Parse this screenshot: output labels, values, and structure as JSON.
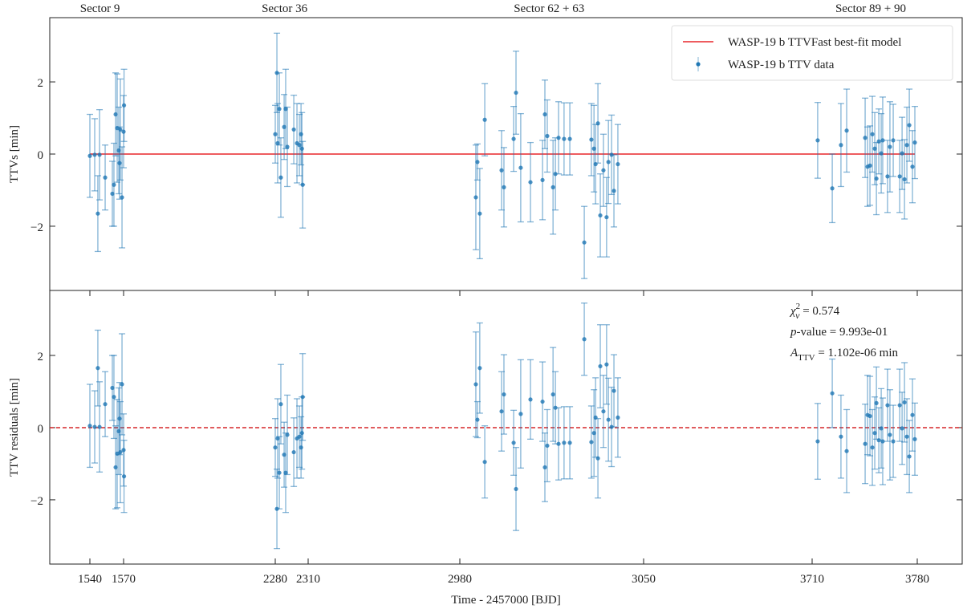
{
  "chart_data": [
    {
      "type": "errorbar",
      "ylabel": "TTVs [min]",
      "ylim": [
        -3.78,
        3.78
      ],
      "yticks": [
        {
          "value": -2,
          "label": "−2"
        },
        0,
        2
      ],
      "x2ticks": [
        {
          "value": 1549,
          "label": "Sector 9"
        },
        {
          "value": 2288.5,
          "label": "Sector 36"
        },
        {
          "value": 3014,
          "label": "Sector 62 + 63"
        },
        {
          "value": 3749,
          "label": "Sector 89 + 90"
        }
      ],
      "legend": "upper right",
      "series": [
        {
          "name": "WASP-19 b TTVFast best-fit model",
          "kind": "line",
          "color": "#e8262a",
          "x": [
            1540,
            3778.4
          ],
          "values": [
            0,
            0
          ]
        },
        {
          "name": "WASP-19 b TTV data",
          "kind": "errorbar",
          "color": "#1f77b4",
          "x": [
            1540,
            1544.3,
            1547.1,
            1548.6,
            1553.6,
            1560,
            1561.4,
            1562.9,
            1564.3,
            1565.7,
            1566.4,
            1567.1,
            1568.6,
            1570,
            1572.1,
            2280,
            2281.5,
            2282.2,
            2283.7,
            2285.1,
            2288.1,
            2289.5,
            2291,
            2296.9,
            2299.8,
            2302,
            2303.5,
            2304.3,
            2305,
            2986.1,
            2986.7,
            2987.6,
            2989.5,
            2995.9,
            2996.8,
            3000.5,
            3001.4,
            3003.2,
            3006.9,
            3011.5,
            3012.4,
            3013.3,
            3015.5,
            3016.4,
            3017.6,
            3019.7,
            3021.9,
            3027.4,
            3030.1,
            3031.1,
            3031.7,
            3032.6,
            3033.5,
            3034.7,
            3035.9,
            3036.6,
            3037.8,
            3038.7,
            3040.2,
            3713.7,
            3723.4,
            3729.2,
            3733,
            3745.3,
            3746.9,
            3748.5,
            3750.1,
            3751.7,
            3752.8,
            3754.4,
            3756,
            3757,
            3760.2,
            3761.8,
            3764,
            3768.3,
            3769.9,
            3771.5,
            3773.1,
            3774.7,
            3776.8,
            3778.4
          ],
          "values": [
            -0.05,
            -0.02,
            -1.65,
            -0.02,
            -0.65,
            -1.1,
            -0.85,
            1.1,
            0.72,
            0.1,
            -0.25,
            0.68,
            -1.2,
            0.62,
            1.35,
            0.55,
            2.25,
            0.3,
            1.25,
            -0.65,
            0.75,
            1.25,
            0.2,
            0.68,
            0.3,
            0.25,
            0.55,
            0.15,
            -0.85,
            -1.2,
            -0.22,
            -1.65,
            0.95,
            -0.45,
            -0.92,
            0.42,
            1.7,
            -0.38,
            -0.78,
            -0.72,
            1.1,
            0.5,
            -0.92,
            -0.55,
            0.45,
            0.42,
            0.42,
            -2.45,
            0.4,
            0.15,
            -0.28,
            0.85,
            -1.7,
            -0.45,
            -1.75,
            -0.22,
            -0.02,
            -1.02,
            -0.28,
            0.38,
            -0.95,
            0.25,
            0.65,
            0.45,
            -0.35,
            -0.32,
            0.55,
            0.15,
            -0.68,
            0.35,
            0.02,
            0.38,
            -0.62,
            0.2,
            0.38,
            -0.62,
            0.02,
            -0.7,
            0.25,
            0.8,
            -0.35,
            0.32
          ],
          "errors": [
            1.15,
            1.0,
            1.05,
            1.25,
            0.9,
            0.9,
            1.15,
            1.15,
            1.5,
            1.2,
            1.0,
            1.4,
            1.4,
            1.0,
            1.0,
            0.8,
            1.1,
            1.1,
            1.0,
            1.1,
            0.9,
            1.1,
            1.1,
            0.95,
            1.1,
            0.85,
            0.85,
            1.0,
            1.2,
            1.45,
            0.5,
            1.25,
            1.0,
            1.1,
            1.1,
            0.9,
            1.15,
            1.5,
            1.1,
            1.1,
            0.95,
            1.0,
            1.3,
            1.0,
            1.0,
            1.0,
            1.0,
            1.0,
            1.0,
            1.2,
            1.1,
            1.1,
            1.15,
            1.0,
            1.1,
            1.15,
            1.1,
            1.0,
            1.1,
            1.05,
            0.95,
            1.15,
            1.15,
            1.1,
            1.1,
            1.1,
            1.05,
            1.0,
            1.0,
            0.9,
            1.1,
            1.2,
            1.0,
            1.25,
            1.0,
            1.0,
            1.0,
            1.1,
            1.05,
            1.0,
            1.0,
            1.0
          ]
        }
      ]
    },
    {
      "type": "errorbar",
      "ylabel": "TTV residuals [min]",
      "ylim": [
        -3.78,
        3.8
      ],
      "yticks": [
        {
          "value": -2,
          "label": "−2"
        },
        0,
        2
      ],
      "xlabel": "Time - 2457000 [BJD]",
      "xlim": [
        1504,
        3810
      ],
      "xticks": [
        1540,
        1570,
        2280,
        2310,
        2980,
        3050,
        3710,
        3780
      ],
      "hline": {
        "value": 0,
        "color": "#d62728",
        "style": "dashed"
      },
      "annotations": [
        {
          "symbol": "χ",
          "sup": "2",
          "sub": "ν",
          "text": " = 0.574"
        },
        {
          "symbol": "p",
          "text": "-value = 9.993e-01"
        },
        {
          "symbol": "A",
          "sub": "TTV",
          "text": " = 1.102e-06 min"
        }
      ],
      "series": [
        {
          "kind": "errorbar",
          "color": "#1f77b4",
          "x": [
            1540,
            1544.3,
            1547.1,
            1548.6,
            1553.6,
            1560,
            1561.4,
            1562.9,
            1564.3,
            1565.7,
            1566.4,
            1567.1,
            1568.6,
            1570,
            1572.1,
            2280,
            2281.5,
            2282.2,
            2283.7,
            2285.1,
            2288.1,
            2289.5,
            2291,
            2296.9,
            2299.8,
            2302,
            2303.5,
            2304.3,
            2305,
            2986.1,
            2986.7,
            2987.6,
            2989.5,
            2995.9,
            2996.8,
            3000.5,
            3001.4,
            3003.2,
            3006.9,
            3011.5,
            3012.4,
            3013.3,
            3015.5,
            3016.4,
            3017.6,
            3019.7,
            3021.9,
            3027.4,
            3030.1,
            3031.1,
            3031.7,
            3032.6,
            3033.5,
            3034.7,
            3035.9,
            3036.6,
            3037.8,
            3038.7,
            3040.2,
            3713.7,
            3723.4,
            3729.2,
            3733,
            3745.3,
            3746.9,
            3748.5,
            3750.1,
            3751.7,
            3752.8,
            3754.4,
            3756,
            3757,
            3760.2,
            3761.8,
            3764,
            3768.3,
            3769.9,
            3771.5,
            3773.1,
            3774.7,
            3776.8,
            3778.4
          ],
          "values": [
            0.05,
            0.02,
            1.65,
            0.02,
            0.65,
            1.1,
            0.85,
            -1.1,
            -0.72,
            -0.1,
            0.25,
            -0.68,
            1.2,
            -0.62,
            -1.35,
            -0.55,
            -2.25,
            -0.3,
            -1.25,
            0.65,
            -0.75,
            -1.25,
            -0.2,
            -0.68,
            -0.3,
            -0.25,
            -0.55,
            -0.15,
            0.85,
            1.2,
            0.22,
            1.65,
            -0.95,
            0.45,
            0.92,
            -0.42,
            -1.7,
            0.38,
            0.78,
            0.72,
            -1.1,
            -0.5,
            0.92,
            0.55,
            -0.45,
            -0.42,
            -0.42,
            2.45,
            -0.4,
            -0.15,
            0.28,
            -0.85,
            1.7,
            0.45,
            1.75,
            0.22,
            0.02,
            1.02,
            0.28,
            -0.38,
            0.95,
            -0.25,
            -0.65,
            -0.45,
            0.35,
            0.32,
            -0.55,
            -0.15,
            0.68,
            -0.35,
            -0.02,
            -0.38,
            0.62,
            -0.2,
            -0.38,
            0.62,
            -0.02,
            0.7,
            -0.25,
            -0.8,
            0.35,
            -0.32
          ],
          "errors": [
            1.15,
            1.0,
            1.05,
            1.25,
            0.9,
            0.9,
            1.15,
            1.15,
            1.5,
            1.2,
            1.0,
            1.4,
            1.4,
            1.0,
            1.0,
            0.8,
            1.1,
            1.1,
            1.0,
            1.1,
            0.9,
            1.1,
            1.1,
            0.95,
            1.1,
            0.85,
            0.85,
            1.0,
            1.2,
            1.45,
            0.5,
            1.25,
            1.0,
            1.1,
            1.1,
            0.9,
            1.15,
            1.5,
            1.1,
            1.1,
            0.95,
            1.0,
            1.3,
            1.0,
            1.0,
            1.0,
            1.0,
            1.0,
            1.0,
            1.2,
            1.1,
            1.1,
            1.15,
            1.0,
            1.1,
            1.15,
            1.1,
            1.0,
            1.1,
            1.05,
            0.95,
            1.15,
            1.15,
            1.1,
            1.1,
            1.1,
            1.05,
            1.0,
            1.0,
            0.9,
            1.1,
            1.2,
            1.0,
            1.25,
            1.0,
            1.0,
            1.0,
            1.1,
            1.05,
            1.0,
            1.0,
            1.0
          ]
        }
      ]
    }
  ]
}
